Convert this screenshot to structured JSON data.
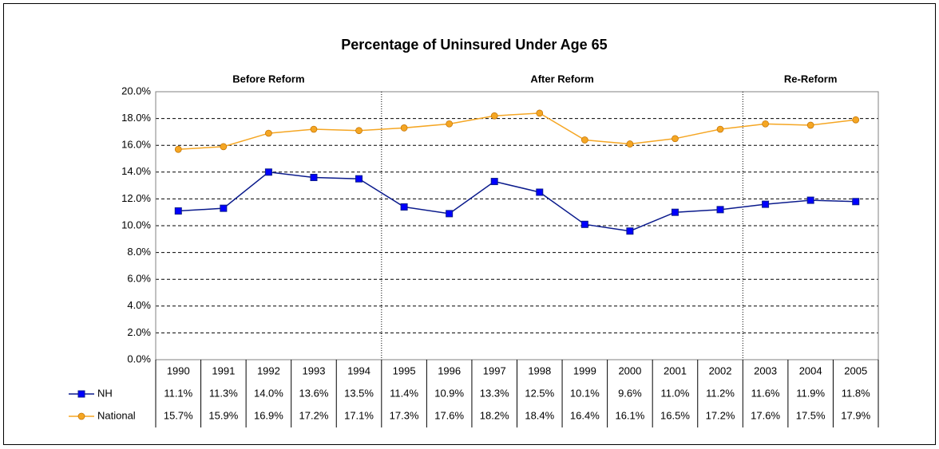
{
  "chart_data": {
    "type": "line",
    "title": "Percentage of Uninsured Under Age 65",
    "annotations": [
      "Before Reform",
      "After Reform",
      "Re-Reform"
    ],
    "categories": [
      "1990",
      "1991",
      "1992",
      "1993",
      "1994",
      "1995",
      "1996",
      "1997",
      "1998",
      "1999",
      "2000",
      "2001",
      "2002",
      "2003",
      "2004",
      "2005"
    ],
    "series": [
      {
        "name": "NH",
        "color": "#0a1a8c",
        "marker_color": "#0000ff",
        "marker": "square",
        "values": [
          11.1,
          11.3,
          14.0,
          13.6,
          13.5,
          11.4,
          10.9,
          13.3,
          12.5,
          10.1,
          9.6,
          11.0,
          11.2,
          11.6,
          11.9,
          11.8
        ],
        "value_labels": [
          "11.1%",
          "11.3%",
          "14.0%",
          "13.6%",
          "13.5%",
          "11.4%",
          "10.9%",
          "13.3%",
          "12.5%",
          "10.1%",
          "9.6%",
          "11.0%",
          "11.2%",
          "11.6%",
          "11.9%",
          "11.8%"
        ]
      },
      {
        "name": "National",
        "color": "#f5a623",
        "marker_color": "#f5a623",
        "marker": "circle",
        "values": [
          15.7,
          15.9,
          16.9,
          17.2,
          17.1,
          17.3,
          17.6,
          18.2,
          18.4,
          16.4,
          16.1,
          16.5,
          17.2,
          17.6,
          17.5,
          17.9
        ],
        "value_labels": [
          "15.7%",
          "15.9%",
          "16.9%",
          "17.2%",
          "17.1%",
          "17.3%",
          "17.6%",
          "18.2%",
          "18.4%",
          "16.4%",
          "16.1%",
          "16.5%",
          "17.2%",
          "17.6%",
          "17.5%",
          "17.9%"
        ]
      }
    ],
    "ylim": [
      0,
      20
    ],
    "yticks": [
      {
        "value": 0,
        "label": "0.0%"
      },
      {
        "value": 2,
        "label": "2.0%"
      },
      {
        "value": 4,
        "label": "4.0%"
      },
      {
        "value": 6,
        "label": "6.0%"
      },
      {
        "value": 8,
        "label": "8.0%"
      },
      {
        "value": 10,
        "label": "10.0%"
      },
      {
        "value": 12,
        "label": "12.0%"
      },
      {
        "value": 14,
        "label": "14.0%"
      },
      {
        "value": 16,
        "label": "16.0%"
      },
      {
        "value": 18,
        "label": "18.0%"
      },
      {
        "value": 20,
        "label": "20.0%"
      }
    ],
    "grid": true
  }
}
